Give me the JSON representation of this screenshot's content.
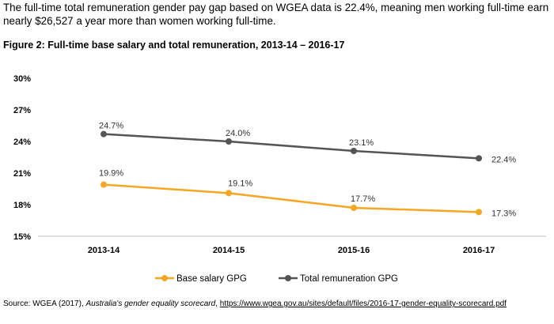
{
  "intro_text": "The full-time total remuneration gender pay gap based on WGEA data is 22.4%, meaning men working full-time earn nearly $26,527 a year more than women working full-time.",
  "source": {
    "prefix": "Source: WGEA (2017), ",
    "title": "Australia's gender equality scorecard",
    "separator": ", ",
    "url": "https://www.wgea.gov.au/sites/default/files/2016-17-gender-equality-scorecard.pdf"
  },
  "chart_data": {
    "type": "line",
    "title": "Figure 2: Full-time base salary and total remuneration, 2013-14 – 2016-17",
    "categories": [
      "2013-14",
      "2014-15",
      "2015-16",
      "2016-17"
    ],
    "ylim": [
      15,
      30
    ],
    "yticks": [
      15,
      18,
      21,
      24,
      27,
      30
    ],
    "ytick_labels": [
      "15%",
      "18%",
      "21%",
      "24%",
      "27%",
      "30%"
    ],
    "legend_position": "bottom",
    "grid": false,
    "series": [
      {
        "name": "Base salary GPG",
        "color": "#F5A623",
        "values": [
          19.9,
          19.1,
          17.7,
          17.3
        ],
        "labels": [
          "19.9%",
          "19.1%",
          "17.7%",
          "17.3%"
        ]
      },
      {
        "name": "Total remuneration GPG",
        "color": "#555555",
        "values": [
          24.7,
          24.0,
          23.1,
          22.4
        ],
        "labels": [
          "24.7%",
          "24.0%",
          "23.1%",
          "22.4%"
        ]
      }
    ]
  }
}
